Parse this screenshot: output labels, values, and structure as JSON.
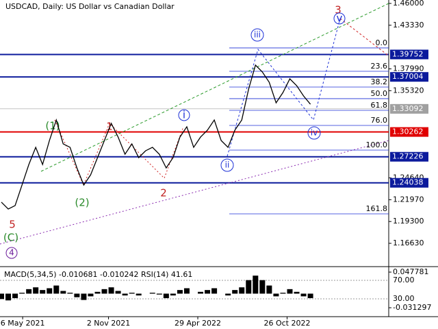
{
  "chart_data": {
    "type": "line",
    "title": "USDCAD, Daily:  US Dollar vs Canadian Dollar",
    "series": [
      {
        "name": "USDCAD",
        "color": "#000000",
        "values": [
          1.2167,
          1.2083,
          1.2125,
          1.2376,
          1.2628,
          1.2838,
          1.2628,
          1.2922,
          1.3173,
          1.288,
          1.2838,
          1.2586,
          1.2376,
          1.2502,
          1.2712,
          1.2922,
          1.3132,
          1.2964,
          1.2754,
          1.288,
          1.2712,
          1.2796,
          1.2838,
          1.2754,
          1.2586,
          1.2712,
          1.2964,
          1.309,
          1.2838,
          1.2964,
          1.3048,
          1.3173,
          1.2922,
          1.2838,
          1.3048,
          1.3173,
          1.3551,
          1.3845,
          1.3761,
          1.3635,
          1.3383,
          1.3509,
          1.3677,
          1.3593,
          1.3467,
          1.3366
        ]
      }
    ],
    "xlim": [
      0,
      56.6
    ],
    "xticks": [
      {
        "value": 3.3,
        "label": "6 May 2021"
      },
      {
        "value": 15.8,
        "label": "2 Nov 2021"
      },
      {
        "value": 28.8,
        "label": "29 Apr 2022"
      },
      {
        "value": 41.8,
        "label": "26 Oct 2022"
      }
    ],
    "ylim": [
      1.1386,
      1.4642
    ],
    "yticks": [
      {
        "value": 1.46,
        "label": "1.46000"
      },
      {
        "value": 1.4333,
        "label": "1.43330"
      },
      {
        "value": 1.3799,
        "label": "1.37990"
      },
      {
        "value": 1.3532,
        "label": "1.35320"
      },
      {
        "value": 1.2464,
        "label": "1.24640"
      },
      {
        "value": 1.2197,
        "label": "1.21970"
      },
      {
        "value": 1.193,
        "label": "1.19300"
      },
      {
        "value": 1.1663,
        "label": "1.16630"
      }
    ],
    "levels": [
      {
        "value": 1.39752,
        "color": "#0b1a9c"
      },
      {
        "value": 1.37004,
        "color": "#0b1a9c"
      },
      {
        "value": 1.30262,
        "color": "#e00000"
      },
      {
        "value": 1.27226,
        "color": "#0b1a9c"
      },
      {
        "value": 1.24038,
        "color": "#0b1a9c"
      }
    ],
    "current_price": {
      "value": 1.33092,
      "color": "#a0a0a0"
    },
    "fibonacci": [
      {
        "label": "0.0",
        "value": 1.4055
      },
      {
        "label": "23.6",
        "value": 1.3769
      },
      {
        "label": "38.2",
        "value": 1.3576
      },
      {
        "label": "50.0",
        "value": 1.3434
      },
      {
        "label": "61.8",
        "value": 1.3291
      },
      {
        "label": "76.0",
        "value": 1.3106
      },
      {
        "label": "100.0",
        "value": 1.2804
      },
      {
        "label": "161.8",
        "value": 1.2024
      }
    ],
    "waves": [
      "3",
      "v",
      "iii",
      "i",
      "1",
      "(1)",
      "2",
      "(2)",
      "ii",
      "iv",
      "5",
      "(C)",
      "4"
    ],
    "indicator": {
      "label": "MACD(5,34,5) -0.010681 -0.010242 RSI(14) 41.61",
      "color": "#000000",
      "values": [
        -0.012,
        -0.015,
        -0.01,
        0.002,
        0.01,
        0.014,
        0.008,
        0.012,
        0.018,
        0.006,
        0.002,
        -0.008,
        -0.014,
        -0.006,
        0.004,
        0.01,
        0.014,
        0.006,
        -0.004,
        0.002,
        -0.004,
        0.0,
        0.002,
        -0.002,
        -0.01,
        -0.004,
        0.008,
        0.012,
        0.0,
        0.004,
        0.008,
        0.012,
        0.0,
        -0.004,
        0.008,
        0.014,
        0.03,
        0.04,
        0.03,
        0.018,
        -0.006,
        0.002,
        0.01,
        0.004,
        -0.006,
        -0.01
      ],
      "ylim": [
        -0.0511,
        0.0554
      ],
      "yticks": [
        {
          "value": 0.047781,
          "label": "0.047781"
        },
        {
          "value": -0.031297,
          "label": "-0.031297"
        }
      ],
      "y2lim": [
        -8.5,
        95.2
      ],
      "y2ticks": [
        {
          "value": 70,
          "label": "70.00"
        },
        {
          "value": 30,
          "label": "30.00"
        }
      ]
    }
  }
}
